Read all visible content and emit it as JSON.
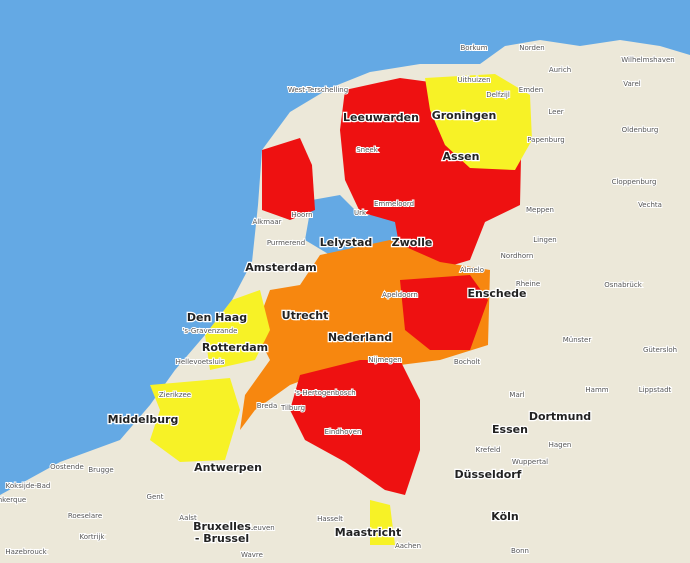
{
  "labels": [
    "Borkum",
    "Norden",
    "Aurich",
    "Wilhelmshaven",
    "Emden",
    "Varel",
    "Leer",
    "Oldenburg",
    "Papenburg",
    "Cloppenburg",
    "Vechta",
    "Meppen",
    "Lingen",
    "Nordhorn",
    "Rheine",
    "Osnabrück",
    "Münster",
    "Gütersloh",
    "Hamm",
    "Lippstadt",
    "Marl",
    "Dortmund",
    "Essen",
    "Hagen",
    "Wuppertal",
    "Krefeld",
    "Düsseldorf",
    "Köln",
    "Bonn",
    "Aachen",
    "Maastricht",
    "Hasselt",
    "Leuven",
    "Bruxelles",
    "- Brussel",
    "Wavre",
    "Aalst",
    "Gent",
    "Brugge",
    "Oostende",
    "Koksijde-Bad",
    "nkerque",
    "Roeselare",
    "Kortrijk",
    "Hazebrouck",
    "Antwerpen",
    "Middelburg",
    "Zierikzee",
    "Hellevoetsluis",
    "Rotterdam",
    "'s-Gravenzande",
    "Den Haag",
    "Utrecht",
    "Nederland",
    "Nijmegen",
    "Bocholt",
    "Apeldoorn",
    "Enschede",
    "Almelo",
    "Zwolle",
    "Lelystad",
    "Urk",
    "Emmeloord",
    "Assen",
    "Groningen",
    "Delfzijl",
    "Uithuizen",
    "Leeuwarden",
    "Sneek",
    "West-Terschelling",
    "Alkmaar",
    "Hoorn",
    "Purmerend",
    "Amsterdam",
    "Breda",
    "Tilburg",
    "'s-Hertogenbosch",
    "Eindhoven"
  ]
}
